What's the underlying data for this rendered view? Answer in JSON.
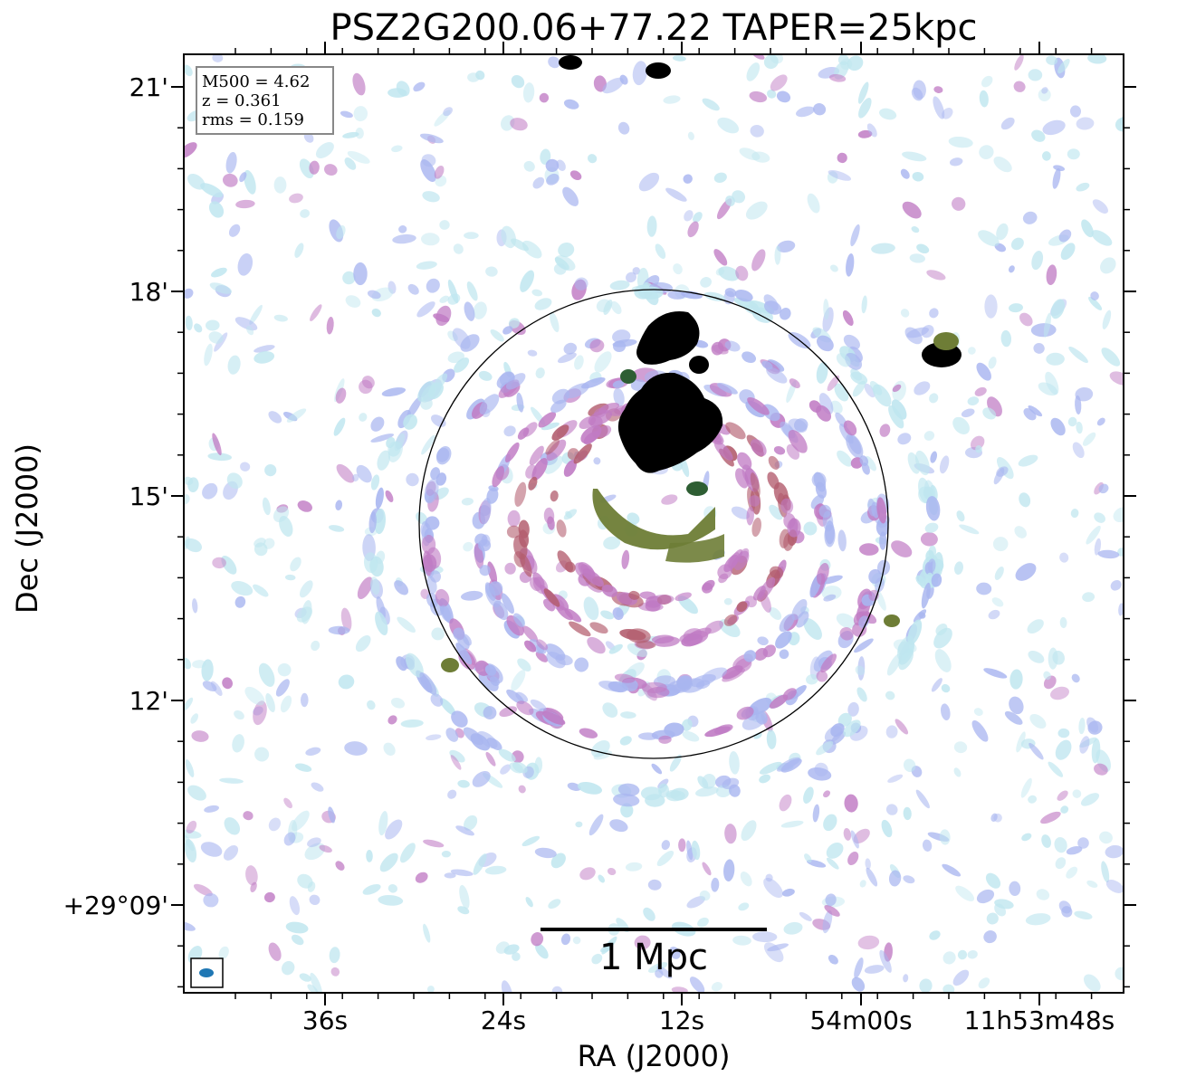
{
  "chart_data": {
    "type": "heatmap",
    "title": "PSZ2G200.06+77.22 TAPER=25kpc",
    "xlabel": "RA (J2000)",
    "ylabel": "Dec (J2000)",
    "x_ticks": [
      "36s",
      "24s",
      "12s",
      "54m00s",
      "11h53m48s"
    ],
    "y_ticks": [
      "21'",
      "18'",
      "15'",
      "12'",
      "+29°09'"
    ],
    "info_box": [
      "M500 = 4.62",
      "z = 0.361",
      "rms = 0.159"
    ],
    "scale_bar_label": "1 Mpc",
    "colormap": [
      "#ffffff",
      "#bfe6ef",
      "#a9b6f0",
      "#c07bc4",
      "#b35d6e",
      "#6e7d36",
      "#2e5e33",
      "#000000"
    ],
    "circle_color": "#000000",
    "beam_color": "#1f77b4",
    "grid": false
  }
}
